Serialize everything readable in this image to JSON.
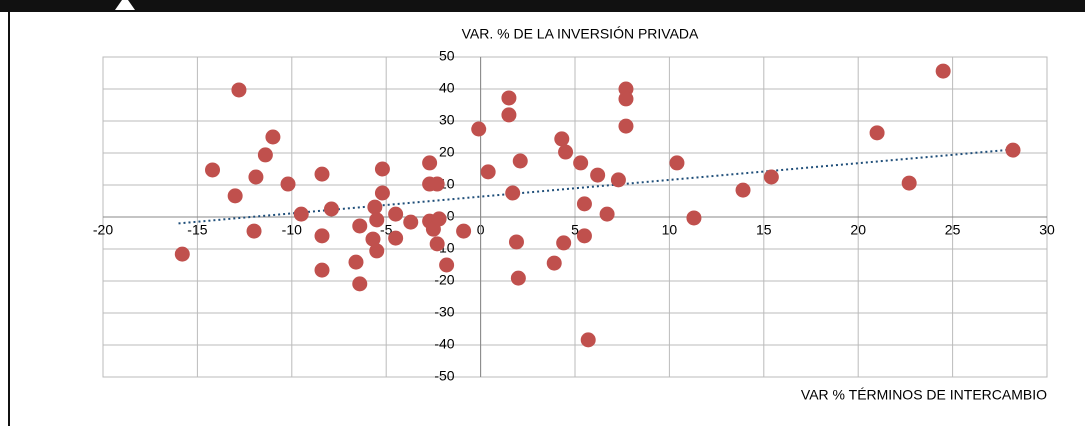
{
  "chart_data": {
    "type": "scatter",
    "x_label": "VAR % TÉRMINOS DE INTERCAMBIO",
    "y_label": "VAR. % DE LA INVERSIÓN PRIVADA",
    "color": "#c0504d",
    "x": [
      -15.8,
      -14.2,
      -12.8,
      -13.0,
      -12.0,
      -11.9,
      -11.4,
      -11.0,
      -10.2,
      -9.5,
      -8.4,
      -8.4,
      -8.4,
      -7.9,
      -6.6,
      -6.4,
      -6.4,
      -5.7,
      -5.6,
      -5.5,
      -5.5,
      -5.2,
      -5.2,
      -4.5,
      -4.5,
      -3.7,
      -2.7,
      -2.7,
      -2.7,
      -2.5,
      -2.3,
      -2.2,
      -2.3,
      -1.8,
      -0.9,
      -0.1,
      0.4,
      1.5,
      1.5,
      1.7,
      1.9,
      2.0,
      2.1,
      3.9,
      4.3,
      4.4,
      4.5,
      5.3,
      5.5,
      5.5,
      5.7,
      6.2,
      6.7,
      7.3,
      7.7,
      7.7,
      7.7,
      10.4,
      11.3,
      13.9,
      15.4,
      21.0,
      22.7,
      24.5,
      28.2
    ],
    "y": [
      -11.6,
      14.7,
      39.7,
      6.6,
      -4.4,
      12.5,
      19.4,
      25,
      10.3,
      0.9,
      13.4,
      -5.9,
      -16.6,
      2.5,
      -14.1,
      -2.8,
      -20.9,
      -6.9,
      3.1,
      -0.9,
      -10.6,
      7.5,
      15,
      0.9,
      -6.6,
      -1.6,
      16.9,
      10.3,
      -1.3,
      -3.8,
      10.3,
      -0.6,
      -8.4,
      -15,
      -4.4,
      27.5,
      14.1,
      37.2,
      31.9,
      7.5,
      -7.8,
      -19.1,
      17.5,
      -14.4,
      24.4,
      -8.1,
      20.3,
      16.9,
      4.1,
      -5.9,
      -38.4,
      13.1,
      0.9,
      11.6,
      40,
      36.9,
      28.4,
      16.9,
      -0.3,
      8.4,
      12.5,
      26.3,
      10.6,
      45.6,
      20.9
    ],
    "trendline": {
      "x": [
        -16,
        28
      ],
      "y": [
        -2,
        21
      ],
      "color": "#1f4e79"
    },
    "xlim": [
      -20,
      30
    ],
    "xticks": [
      -20,
      -15,
      -10,
      -5,
      0,
      5,
      10,
      15,
      20,
      25,
      30
    ],
    "ylim": [
      -50,
      50
    ],
    "yticks": [
      -50,
      -40,
      -30,
      -20,
      -10,
      0,
      10,
      20,
      30,
      40,
      50
    ],
    "grid": true
  }
}
